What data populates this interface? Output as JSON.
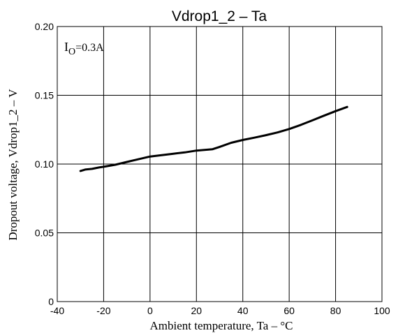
{
  "chart_data": {
    "type": "line",
    "title": "Vdrop1_2 – Ta",
    "xlabel": "Ambient temperature, Ta – °C",
    "ylabel": "Dropout voltage, Vdrop1_2 – V",
    "xlim": [
      -40,
      100
    ],
    "ylim": [
      0,
      0.2
    ],
    "x_ticks": [
      "-40",
      "-20",
      "0",
      "20",
      "40",
      "60",
      "80",
      "100"
    ],
    "y_ticks": [
      "0",
      "0.05",
      "0.10",
      "0.15",
      "0.20"
    ],
    "grid": true,
    "annotation": {
      "main": "I",
      "sub": "O",
      "rest": "=0.3A"
    },
    "series": [
      {
        "x": [
          -30,
          -28,
          -25,
          -22,
          -20,
          -15,
          -10,
          -5,
          0,
          5,
          10,
          15,
          20,
          23,
          27,
          30,
          35,
          40,
          45,
          50,
          55,
          60,
          65,
          70,
          75,
          80,
          85
        ],
        "y": [
          0.095,
          0.096,
          0.0965,
          0.0975,
          0.098,
          0.0995,
          0.1015,
          0.1035,
          0.1055,
          0.1065,
          0.1075,
          0.1085,
          0.1098,
          0.1102,
          0.1108,
          0.1125,
          0.1155,
          0.1175,
          0.1192,
          0.121,
          0.123,
          0.1255,
          0.1285,
          0.1318,
          0.1352,
          0.1385,
          0.1415
        ]
      }
    ]
  }
}
